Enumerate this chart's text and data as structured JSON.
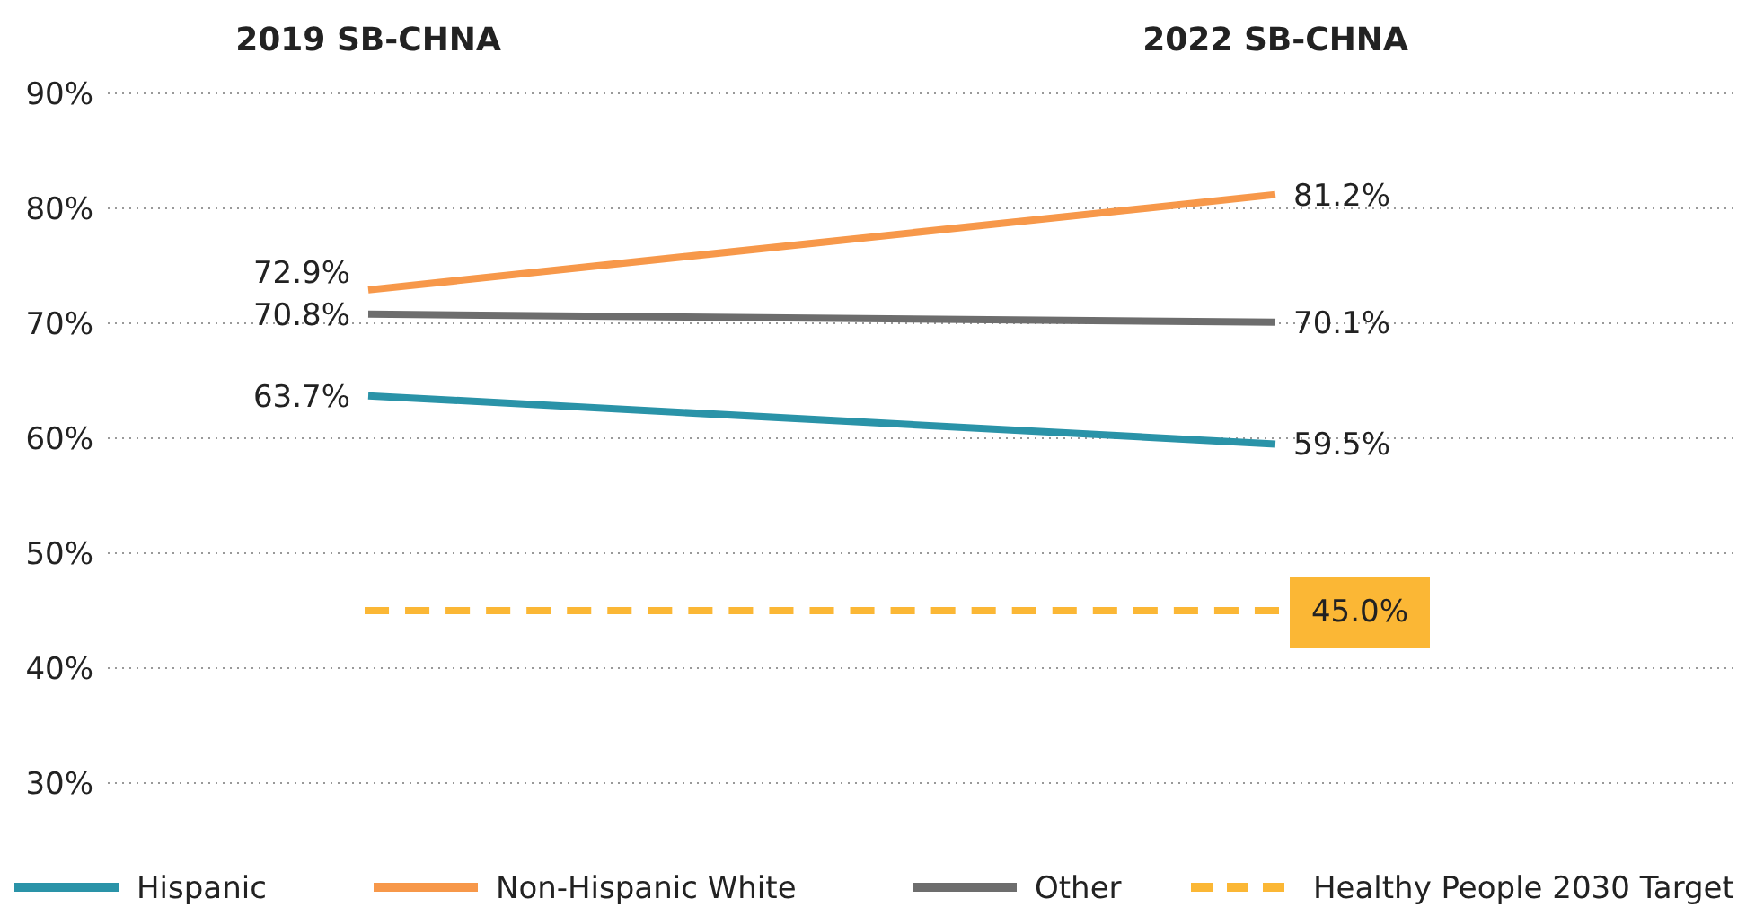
{
  "chart_data": {
    "type": "line",
    "categories": [
      "2019 SB-CHNA",
      "2022 SB-CHNA"
    ],
    "series": [
      {
        "name": "Hispanic",
        "color": "#2a93a8",
        "values": [
          63.7,
          59.5
        ],
        "value_labels": [
          "63.7%",
          "59.5%"
        ]
      },
      {
        "name": "Non-Hispanic White",
        "color": "#f7984a",
        "values": [
          72.9,
          81.2
        ],
        "value_labels": [
          "72.9%",
          "81.2%"
        ]
      },
      {
        "name": "Other",
        "color": "#6d6d6d",
        "values": [
          70.8,
          70.1
        ],
        "value_labels": [
          "70.8%",
          "70.1%"
        ]
      },
      {
        "name": "Healthy People 2030 Target",
        "color": "#fbb735",
        "values": [
          45,
          45
        ],
        "value_labels": [
          null,
          "45.0%"
        ],
        "line_style": "dashed"
      }
    ],
    "ylim": [
      30,
      90
    ],
    "yticks": [
      {
        "value": 30,
        "label": "30%"
      },
      {
        "value": 40,
        "label": "40%"
      },
      {
        "value": 50,
        "label": "50%"
      },
      {
        "value": 60,
        "label": "60%"
      },
      {
        "value": 70,
        "label": "70%"
      },
      {
        "value": 80,
        "label": "80%"
      },
      {
        "value": 90,
        "label": "90%"
      }
    ],
    "grid": "y",
    "legend": "bottom",
    "marker": "none"
  }
}
